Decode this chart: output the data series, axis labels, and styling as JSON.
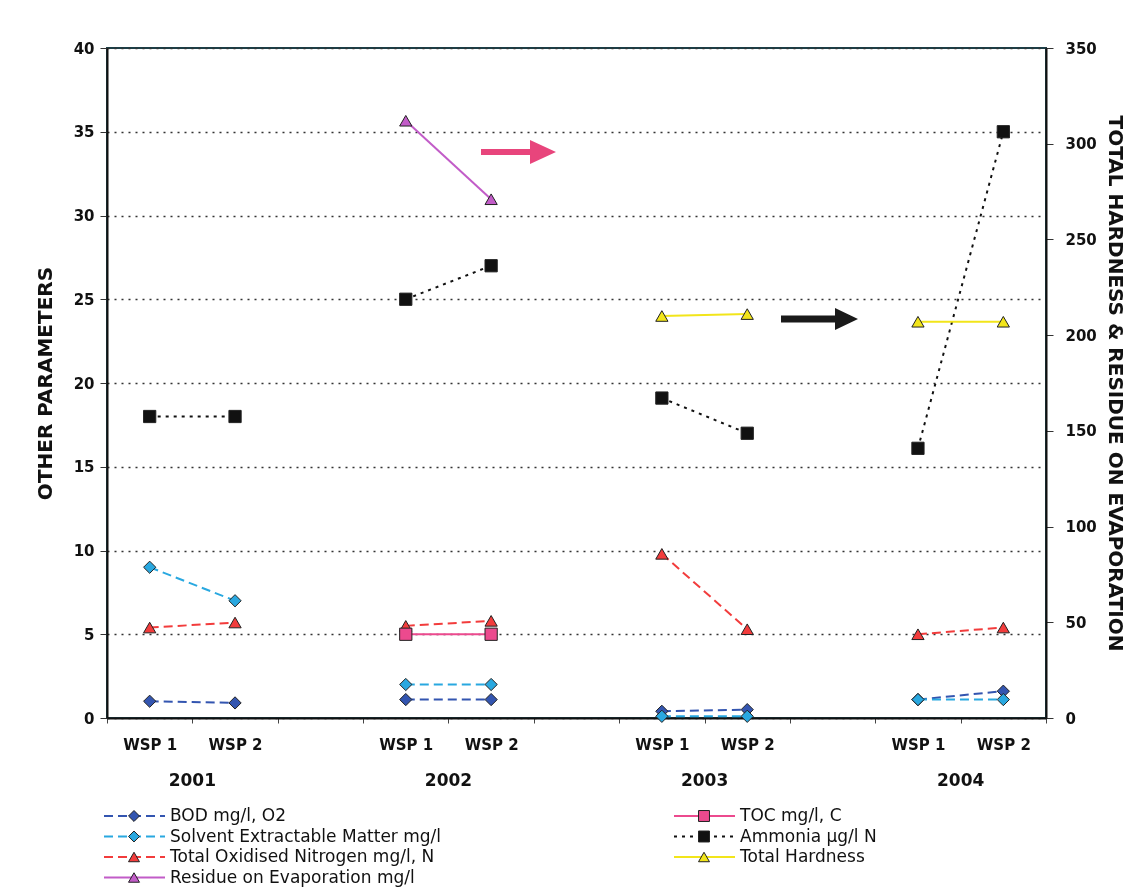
{
  "chart_data": {
    "type": "line",
    "ylabel": "OTHER PARAMETERS",
    "y2label": "TOTAL HARDNESS & RESIDUE ON EVAPORATION",
    "categories": [
      "WSP 1",
      "WSP 2",
      null,
      "WSP 1",
      "WSP 2",
      null,
      "WSP 1",
      "WSP 2",
      null,
      "WSP 1",
      "WSP 2"
    ],
    "annotations": [
      "2001",
      "2002",
      "2003",
      "2004"
    ],
    "series": [
      {
        "name": "BOD mg/l, O2",
        "color": "#3355b0",
        "marker": "diamond",
        "line_style": "dashed",
        "values": [
          1.0,
          0.9,
          null,
          1.1,
          1.1,
          null,
          0.4,
          0.5,
          null,
          1.1,
          1.6
        ]
      },
      {
        "name": "Solvent Extractable Matter mg/l",
        "color": "#29a8e0",
        "marker": "diamond",
        "line_style": "dashed",
        "values": [
          9,
          7,
          null,
          2,
          2,
          null,
          0.1,
          0.1,
          null,
          1.1,
          1.1
        ]
      },
      {
        "name": "Total Oxidised Nitrogen mg/l, N",
        "color": "#f23c3c",
        "marker": "triangle",
        "line_style": "dashed",
        "values": [
          5.4,
          5.7,
          null,
          5.5,
          5.8,
          null,
          9.8,
          5.3,
          null,
          5.0,
          5.4
        ]
      },
      {
        "name": "Residue on Evaporation mg/l",
        "color": "#c25cc8",
        "marker": "triangle",
        "line_style": "solid",
        "axis": "y2",
        "values": [
          null,
          null,
          null,
          312,
          271,
          null,
          null,
          null,
          null,
          null,
          null
        ]
      },
      {
        "name": "TOC mg/l, C",
        "color": "#ec4a8e",
        "marker": "square",
        "line_style": "solid",
        "values": [
          null,
          null,
          null,
          5.0,
          5.0,
          null,
          null,
          null,
          null,
          null,
          null
        ]
      },
      {
        "name": "Ammonia µg/l N",
        "color": "#111111",
        "marker": "square",
        "line_style": "dotted",
        "values": [
          18,
          18,
          null,
          25,
          27,
          null,
          19.1,
          17.0,
          null,
          16.1,
          35
        ]
      },
      {
        "name": "Total Hardness",
        "color": "#f2e51a",
        "marker": "triangle",
        "line_style": "solid",
        "axis": "y2",
        "values": [
          null,
          null,
          null,
          null,
          null,
          null,
          210,
          211,
          null,
          207,
          207
        ]
      }
    ],
    "ylim": [
      0,
      40
    ],
    "yticks": [
      0,
      5,
      10,
      15,
      20,
      25,
      30,
      35,
      40
    ],
    "y2lim": [
      0,
      350
    ],
    "y2ticks": [
      0,
      50,
      100,
      150,
      200,
      250,
      300,
      350
    ],
    "grid": "y",
    "legend": "bottom"
  }
}
